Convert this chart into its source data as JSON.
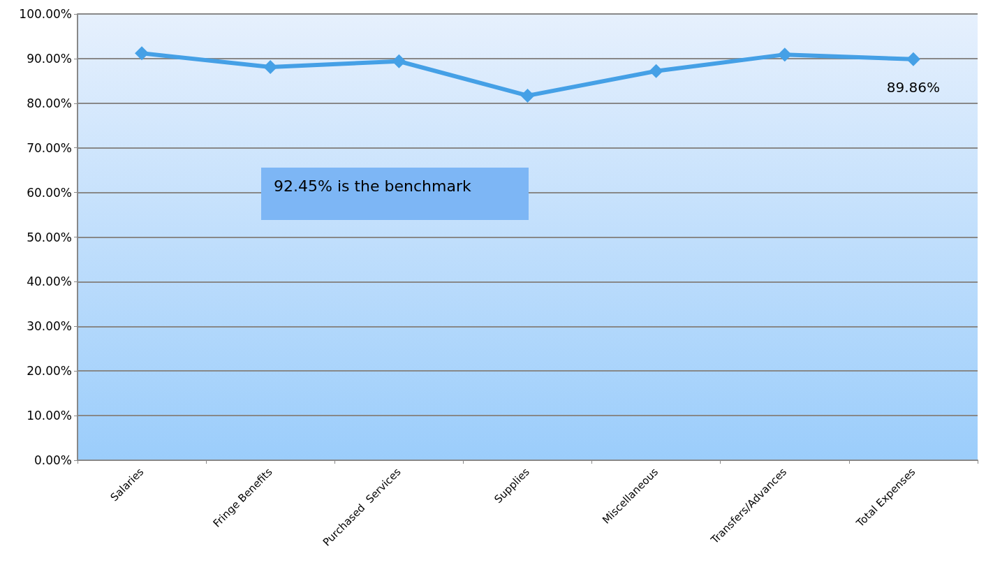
{
  "chart_data": {
    "type": "line",
    "categories": [
      "Salaries",
      "Fringe Benefits",
      "Purchased  Services",
      "Supplies",
      "Miscellaneous",
      "Transfers/Advances",
      "Total Expenses"
    ],
    "series": [
      {
        "color": "#45a0e6",
        "values": [
          91.2,
          88.1,
          89.4,
          81.7,
          87.2,
          90.9,
          89.86
        ],
        "value_labels": [
          null,
          null,
          null,
          null,
          null,
          null,
          "89.86%"
        ]
      }
    ],
    "ylim": [
      0,
      100
    ],
    "yticks": [
      {
        "value": 0,
        "label": "0.00%"
      },
      {
        "value": 10,
        "label": "10.00%"
      },
      {
        "value": 20,
        "label": "20.00%"
      },
      {
        "value": 30,
        "label": "30.00%"
      },
      {
        "value": 40,
        "label": "40.00%"
      },
      {
        "value": 50,
        "label": "50.00%"
      },
      {
        "value": 60,
        "label": "60.00%"
      },
      {
        "value": 70,
        "label": "70.00%"
      },
      {
        "value": 80,
        "label": "80.00%"
      },
      {
        "value": 90,
        "label": "90.00%"
      },
      {
        "value": 100,
        "label": "100.00%"
      }
    ],
    "grid": "y",
    "marker": "diamond",
    "line_style": "solid",
    "annotations": [
      "92.45% is the benchmark"
    ]
  }
}
